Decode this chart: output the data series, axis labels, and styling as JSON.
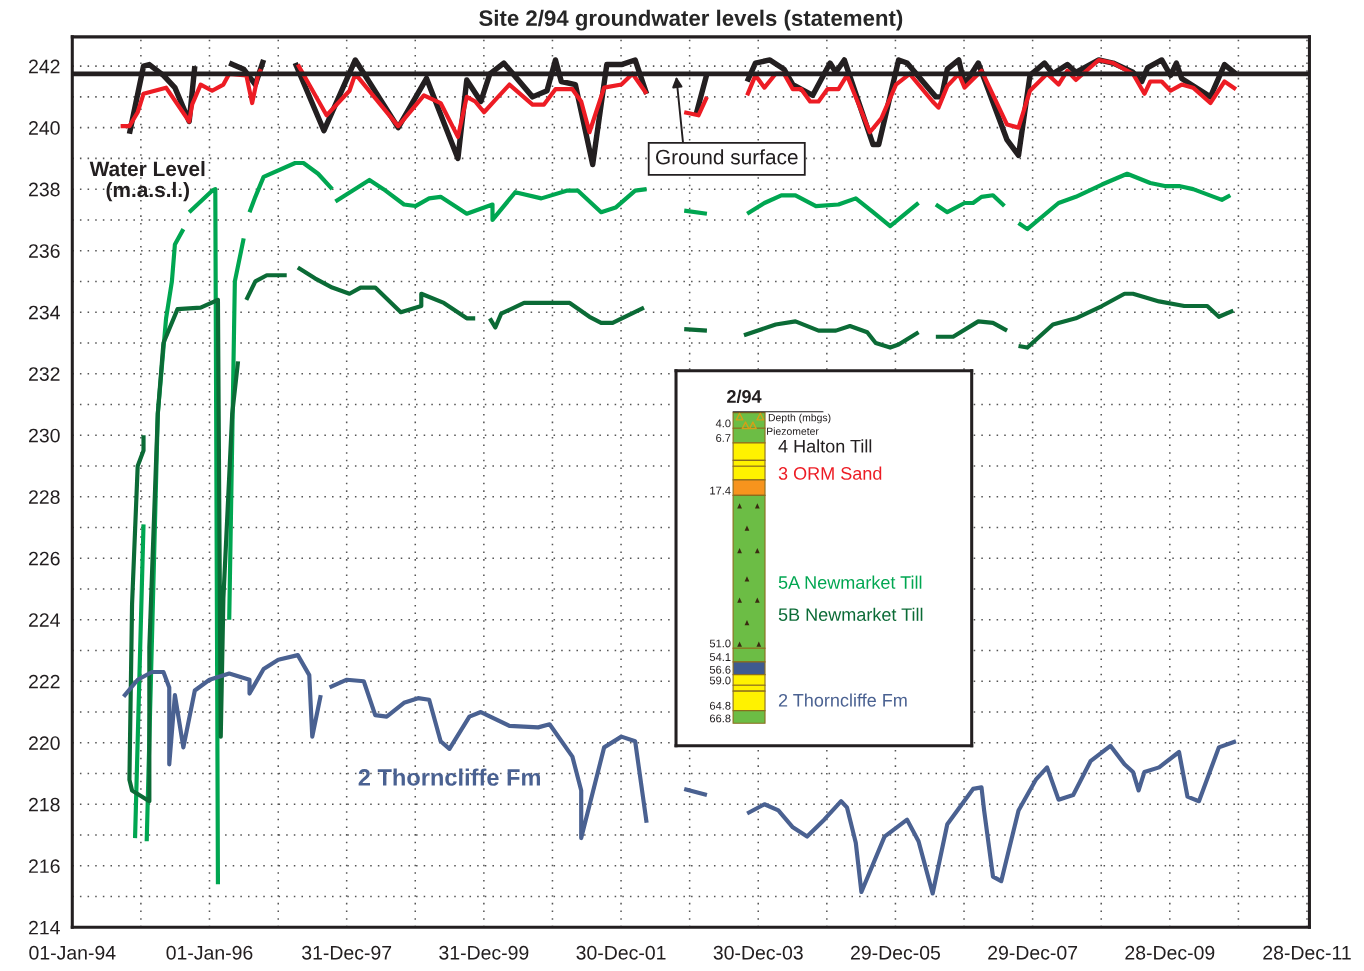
{
  "chart_data": {
    "type": "line",
    "title": "Site 2/94 groundwater levels (statement)",
    "ylabel": "Water Level\n(m.a.s.l.)",
    "legend_title": "2/94",
    "legend": "center",
    "grid": true,
    "xlim": [
      "1994-01-01",
      "2012-01-10"
    ],
    "xticks": [
      {
        "value": "1994-01-01",
        "label": "01-Jan-94"
      },
      {
        "value": "1995-01-01",
        "label": null
      },
      {
        "value": "1996-01-01",
        "label": "01-Jan-96"
      },
      {
        "value": "1997-01-01",
        "label": null
      },
      {
        "value": "1997-12-31",
        "label": "31-Dec-97"
      },
      {
        "value": "1998-12-31",
        "label": null
      },
      {
        "value": "1999-12-31",
        "label": "31-Dec-99"
      },
      {
        "value": "2000-12-30",
        "label": null
      },
      {
        "value": "2001-12-30",
        "label": "30-Dec-01"
      },
      {
        "value": "2002-12-30",
        "label": null
      },
      {
        "value": "2003-12-30",
        "label": "30-Dec-03"
      },
      {
        "value": "2004-12-29",
        "label": null
      },
      {
        "value": "2005-12-29",
        "label": "29-Dec-05"
      },
      {
        "value": "2006-12-29",
        "label": null
      },
      {
        "value": "2007-12-29",
        "label": "29-Dec-07"
      },
      {
        "value": "2008-12-28",
        "label": null
      },
      {
        "value": "2009-12-28",
        "label": "28-Dec-09"
      },
      {
        "value": "2010-12-28",
        "label": null
      },
      {
        "value": "2011-12-28",
        "label": "28-Dec-11"
      }
    ],
    "ylim": [
      214,
      242.95
    ],
    "yticks": [
      214,
      {
        "value": 215,
        "label": null
      },
      216,
      {
        "value": 217,
        "label": null
      },
      218,
      {
        "value": 219,
        "label": null
      },
      220,
      {
        "value": 221,
        "label": null
      },
      222,
      {
        "value": 223,
        "label": null
      },
      224,
      {
        "value": 225,
        "label": null
      },
      226,
      {
        "value": 227,
        "label": null
      },
      228,
      {
        "value": 229,
        "label": null
      },
      230,
      {
        "value": 231,
        "label": null
      },
      232,
      {
        "value": 233,
        "label": null
      },
      234,
      {
        "value": 235,
        "label": null
      },
      236,
      {
        "value": 237,
        "label": null
      },
      238,
      {
        "value": 239,
        "label": null
      },
      240,
      {
        "value": 241,
        "label": null
      },
      242
    ],
    "ref_lines": [
      {
        "axis": "y",
        "value": 241.75,
        "label": "Ground surface",
        "color": "#231f20"
      }
    ],
    "annotations": [
      "Depth (mbgs)",
      "Piezometer",
      "4.0",
      "6.7",
      "17.4",
      "51.0",
      "54.1",
      "56.6",
      "59.0",
      "64.8",
      "66.8",
      "2 Thorncliffe Fm"
    ],
    "series": [
      {
        "name": "4 Halton Till",
        "color": "#231f20",
        "x": [
          "1994-11-01",
          "1995-01-15",
          "1995-02-15",
          "1995-05-01",
          "1995-07-01",
          "1995-09-15",
          "1995-10-15",
          "1996-01-15",
          "1996-04-15",
          "1996-07-01",
          "1996-09-01",
          "1996-10-15",
          "1997-01-15",
          "1997-04-01",
          "1997-09-01",
          "1998-02-15",
          "1998-10-01",
          "1999-03-01",
          "1999-08-15",
          "1999-10-01",
          "1999-12-15",
          "2000-02-01",
          "2000-04-15",
          "2000-09-15",
          "2000-12-01",
          "2001-01-15",
          "2001-02-15",
          "2001-05-01",
          "2001-08-01",
          "2001-10-15",
          "2002-01-01",
          "2002-03-15",
          "2002-05-15",
          "2002-10-01",
          "2003-02-01",
          "2003-04-01",
          "2003-07-15",
          "2003-11-01",
          "2003-12-15",
          "2004-03-01",
          "2004-05-15",
          "2004-07-01",
          "2004-10-15",
          "2005-01-15",
          "2005-02-15",
          "2005-04-01",
          "2005-09-01",
          "2005-10-01",
          "2006-01-15",
          "2006-03-01",
          "2006-08-01",
          "2006-09-01",
          "2006-10-01",
          "2006-12-01",
          "2007-01-01",
          "2007-03-15",
          "2007-08-15",
          "2007-10-15",
          "2007-12-15",
          "2008-03-01",
          "2008-04-15",
          "2008-07-01",
          "2008-08-15",
          "2008-12-15",
          "2009-03-01",
          "2009-06-15",
          "2009-08-01",
          "2009-09-01",
          "2009-11-15",
          "2010-01-01",
          "2010-02-01",
          "2010-03-01",
          "2010-08-01",
          "2010-10-15",
          "2010-12-15"
        ],
        "values": [
          239.8,
          242.0,
          242.05,
          241.7,
          241.3,
          240.2,
          242.0,
          null,
          242.1,
          241.9,
          241.4,
          242.2,
          null,
          242.1,
          239.9,
          242.2,
          240.0,
          241.6,
          239.0,
          241.55,
          240.85,
          241.75,
          242.1,
          241.0,
          241.2,
          242.2,
          241.5,
          241.4,
          238.8,
          242.05,
          242.05,
          242.2,
          241.1,
          null,
          240.4,
          241.75,
          null,
          241.5,
          242.1,
          242.2,
          241.9,
          241.4,
          241.05,
          242.1,
          241.8,
          242.2,
          239.45,
          239.45,
          242.2,
          242.1,
          241.0,
          241.0,
          241.9,
          242.2,
          241.4,
          242.1,
          239.6,
          239.1,
          241.7,
          242.1,
          241.75,
          242.05,
          241.8,
          242.2,
          242.1,
          241.8,
          241.5,
          241.95,
          242.2,
          241.7,
          242.1,
          241.6,
          241.0,
          242.05,
          241.75
        ]
      },
      {
        "name": "3 ORM Sand",
        "color": "#ed1c24",
        "x": [
          "1994-09-15",
          "1994-11-01",
          "1994-12-15",
          "1995-01-15",
          "1995-05-15",
          "1995-09-15",
          "1995-10-01",
          "1995-11-15",
          "1996-01-15",
          "1996-03-15",
          "1996-04-15",
          "1996-07-15",
          "1996-08-15",
          "1996-09-15",
          "1996-10-01",
          "1997-01-15",
          "1997-04-15",
          "1997-09-15",
          "1998-01-15",
          "1998-02-15",
          "1998-10-01",
          "1999-02-15",
          "1999-05-15",
          "1999-08-15",
          "1999-10-01",
          "1999-11-15",
          "2000-01-01",
          "2000-03-01",
          "2000-05-15",
          "2000-09-15",
          "2000-11-15",
          "2001-01-15",
          "2001-04-15",
          "2001-06-01",
          "2001-07-15",
          "2001-10-01",
          "2002-01-01",
          "2002-03-01",
          "2002-05-15",
          "2002-09-01",
          "2002-12-01",
          "2003-02-15",
          "2003-04-01",
          "2003-07-15",
          "2003-11-01",
          "2003-12-15",
          "2004-02-01",
          "2004-04-01",
          "2004-05-15",
          "2004-07-01",
          "2004-08-15",
          "2004-10-01",
          "2004-11-15",
          "2005-01-01",
          "2005-03-01",
          "2005-04-15",
          "2005-08-15",
          "2005-10-15",
          "2006-01-01",
          "2006-03-15",
          "2006-07-15",
          "2006-08-15",
          "2006-10-01",
          "2006-12-01",
          "2007-01-01",
          "2007-04-01",
          "2007-08-15",
          "2007-10-15",
          "2007-12-15",
          "2008-03-15",
          "2008-05-15",
          "2008-07-01",
          "2008-08-15",
          "2008-12-15",
          "2009-03-01",
          "2009-06-15",
          "2009-08-15",
          "2009-09-15",
          "2009-11-15",
          "2010-01-01",
          "2010-03-01",
          "2010-05-01",
          "2010-08-01",
          "2010-10-15",
          "2010-12-15"
        ],
        "values": [
          240.05,
          240.05,
          240.5,
          241.1,
          241.3,
          240.2,
          240.75,
          241.4,
          241.2,
          241.4,
          241.75,
          241.7,
          240.8,
          241.7,
          241.9,
          null,
          242.05,
          240.4,
          241.2,
          241.75,
          240.05,
          241.05,
          240.8,
          239.7,
          241.0,
          240.85,
          240.5,
          240.9,
          241.4,
          240.75,
          240.75,
          241.25,
          241.25,
          240.85,
          239.85,
          241.3,
          241.4,
          241.75,
          241.1,
          null,
          240.5,
          240.4,
          241.0,
          null,
          241.05,
          241.7,
          241.3,
          241.75,
          241.75,
          241.25,
          241.25,
          240.85,
          240.85,
          241.25,
          241.25,
          241.7,
          239.85,
          240.3,
          241.4,
          241.75,
          240.85,
          240.65,
          241.35,
          241.75,
          241.3,
          241.85,
          240.1,
          240.0,
          241.2,
          241.75,
          241.4,
          241.85,
          241.55,
          242.2,
          242.1,
          241.75,
          241.1,
          241.5,
          241.5,
          241.2,
          241.4,
          241.3,
          240.8,
          241.5,
          241.25
        ]
      },
      {
        "name": "5A Newmarket Till",
        "color": "#00a651",
        "x": [
          "1994-12-01",
          "1995-01-15",
          "1995-01-22",
          "1995-02-01",
          "1995-04-01",
          "1995-05-15",
          "1995-06-15",
          "1995-07-01",
          "1995-08-15",
          "1995-09-01",
          "1995-09-15",
          "1996-01-15",
          "1996-02-01",
          "1996-02-15",
          "1996-03-15",
          "1996-04-15",
          "1996-05-15",
          "1996-07-01",
          "1996-07-15",
          "1996-08-01",
          "1996-09-01",
          "1996-10-15",
          "1997-04-01",
          "1997-05-15",
          "1997-08-01",
          "1997-10-15",
          "1997-10-22",
          "1997-11-01",
          "1998-05-01",
          "1998-07-15",
          "1998-11-01",
          "1999-01-01",
          "1999-03-15",
          "1999-05-15",
          "1999-10-01",
          "2000-02-15",
          "2000-02-15",
          "2000-06-15",
          "2000-11-01",
          "2001-03-15",
          "2001-05-15",
          "2001-09-15",
          "2001-12-01",
          "2002-03-15",
          "2002-05-15",
          "2002-09-01",
          "2002-12-01",
          "2003-04-01",
          "2003-07-15",
          "2003-11-01",
          "2004-02-01",
          "2004-05-01",
          "2004-07-15",
          "2004-11-01",
          "2005-03-01",
          "2005-06-01",
          "2005-09-01",
          "2005-12-01",
          "2006-05-01",
          "2006-06-15",
          "2006-08-01",
          "2006-10-01",
          "2007-01-01",
          "2007-02-15",
          "2007-04-01",
          "2007-06-01",
          "2007-08-01",
          "2007-09-15",
          "2007-10-15",
          "2007-12-01",
          "2008-05-15",
          "2008-08-15",
          "2009-01-01",
          "2009-05-15",
          "2009-09-15",
          "2009-12-01",
          "2010-02-15",
          "2010-05-01",
          "2010-10-01",
          "2010-11-15"
        ],
        "values": [
          216.9,
          227.1,
          null,
          216.8,
          230.7,
          233.8,
          235.0,
          236.2,
          236.7,
          null,
          237.25,
          237.95,
          238.0,
          215.4,
          null,
          224.0,
          235.0,
          236.4,
          null,
          237.25,
          237.75,
          238.4,
          238.85,
          238.85,
          238.5,
          238.0,
          null,
          237.6,
          238.3,
          238.0,
          237.5,
          237.45,
          237.7,
          237.75,
          237.2,
          237.5,
          237.0,
          237.9,
          237.7,
          237.95,
          237.95,
          237.25,
          237.4,
          237.95,
          238.0,
          null,
          237.3,
          237.2,
          null,
          237.2,
          237.55,
          237.8,
          237.8,
          237.45,
          237.5,
          237.7,
          237.25,
          236.8,
          237.55,
          null,
          237.5,
          237.25,
          237.55,
          237.55,
          237.75,
          237.8,
          237.45,
          null,
          236.9,
          236.7,
          237.55,
          237.75,
          238.15,
          238.5,
          238.2,
          238.1,
          238.1,
          238.0,
          237.65,
          237.8
        ]
      },
      {
        "name": "5B Newmarket Till",
        "color": "#0b6b36",
        "x": [
          "1995-01-15",
          "1995-01-15",
          "1994-12-15",
          "1994-11-15",
          "1994-11-01",
          "1994-11-15",
          "1995-02-15",
          "1995-02-15",
          "1995-04-01",
          "1995-05-01",
          "1995-07-15",
          "1995-11-15",
          "1996-02-15",
          "1996-03-01",
          "1996-03-15",
          "1996-05-01",
          "1996-06-01",
          "1996-07-01",
          "1996-07-15",
          "1996-09-01",
          "1996-11-01",
          "1997-02-15",
          "1997-03-15",
          "1997-04-15",
          "1997-07-15",
          "1997-10-15",
          "1998-01-15",
          "1998-03-15",
          "1998-06-01",
          "1998-10-15",
          "1999-02-01",
          "1999-02-01",
          "1999-06-01",
          "1999-10-01",
          "1999-11-15",
          "2000-01-01",
          "2000-02-01",
          "2000-03-01",
          "2000-04-01",
          "2000-08-01",
          "2001-04-01",
          "2001-07-15",
          "2001-09-15",
          "2001-11-15",
          "2002-05-01",
          "2002-09-01",
          "2002-12-01",
          "2003-04-01",
          "2003-07-15",
          "2003-10-15",
          "2004-04-01",
          "2004-07-15",
          "2004-11-15",
          "2005-02-15",
          "2005-05-01",
          "2005-08-01",
          "2005-09-15",
          "2005-12-01",
          "2006-01-15",
          "2006-05-01",
          "2006-06-15",
          "2006-08-01",
          "2006-11-01",
          "2007-03-15",
          "2007-06-01",
          "2007-08-15",
          "2007-09-15",
          "2007-10-15",
          "2007-12-01",
          "2008-04-15",
          "2008-08-15",
          "2009-01-01",
          "2009-05-01",
          "2009-06-15",
          "2009-11-01",
          "2010-03-15",
          "2010-07-15",
          "2010-09-15",
          "2010-12-01"
        ],
        "values": [
          230.0,
          229.5,
          229.0,
          224.5,
          218.8,
          218.45,
          218.1,
          223.1,
          230.7,
          233.0,
          234.1,
          234.15,
          234.4,
          220.2,
          224.7,
          230.7,
          232.4,
          null,
          234.4,
          235.0,
          235.2,
          235.2,
          null,
          235.45,
          235.1,
          234.8,
          234.6,
          234.8,
          234.8,
          234.0,
          234.2,
          234.6,
          234.3,
          233.8,
          233.8,
          null,
          233.8,
          233.5,
          233.95,
          234.3,
          234.3,
          233.85,
          233.65,
          233.65,
          234.15,
          null,
          233.45,
          233.4,
          null,
          233.25,
          233.6,
          233.7,
          233.4,
          233.4,
          233.55,
          233.35,
          233.0,
          232.85,
          232.95,
          233.35,
          null,
          233.2,
          233.2,
          233.7,
          233.65,
          233.4,
          null,
          232.9,
          232.85,
          233.6,
          233.8,
          234.2,
          234.6,
          234.6,
          234.35,
          234.2,
          234.2,
          233.85,
          234.05
        ]
      },
      {
        "name": "2 Thorncliffe Fm",
        "color": "#4a6191",
        "x": [
          "1994-10-01",
          "1994-12-15",
          "1995-03-01",
          "1995-05-01",
          "1995-06-01",
          "1995-06-01",
          "1995-07-01",
          "1995-08-15",
          "1995-10-15",
          "1996-01-01",
          "1996-04-15",
          "1996-08-01",
          "1996-08-01",
          "1996-10-15",
          "1997-01-01",
          "1997-04-15",
          "1997-06-15",
          "1997-07-01",
          "1997-08-15",
          "1997-09-01",
          "1997-10-01",
          "1998-01-01",
          "1998-04-01",
          "1998-06-01",
          "1998-08-01",
          "1998-11-01",
          "1999-01-15",
          "1999-03-15",
          "1999-05-15",
          "1999-07-01",
          "1999-10-15",
          "1999-12-15",
          "2000-05-15",
          "2000-10-15",
          "2000-12-15",
          "2001-04-15",
          "2001-06-01",
          "2001-06-01",
          "2001-10-01",
          "2002-01-01",
          "2002-03-15",
          "2002-05-15",
          "2002-09-01",
          "2002-12-01",
          "2003-04-01",
          "2003-07-15",
          "2003-11-01",
          "2004-02-01",
          "2004-04-15",
          "2004-07-01",
          "2004-09-15",
          "2004-12-15",
          "2005-03-15",
          "2005-04-15",
          "2005-06-01",
          "2005-07-01",
          "2005-11-01",
          "2006-03-01",
          "2006-05-01",
          "2006-07-15",
          "2006-10-01",
          "2007-02-15",
          "2007-04-01",
          "2007-04-15",
          "2007-06-01",
          "2007-07-15",
          "2007-10-15",
          "2008-01-15",
          "2008-03-15",
          "2008-05-15",
          "2008-08-01",
          "2008-11-01",
          "2009-02-15",
          "2009-05-01",
          "2009-06-15",
          "2009-07-15",
          "2009-08-15",
          "2009-11-01",
          "2010-02-15",
          "2010-04-01",
          "2010-06-01",
          "2010-09-15",
          "2010-12-15"
        ],
        "values": [
          221.5,
          222.05,
          222.3,
          222.3,
          221.8,
          219.3,
          221.55,
          219.85,
          221.7,
          222.05,
          222.25,
          222.05,
          221.6,
          222.4,
          222.7,
          222.85,
          222.2,
          220.2,
          221.55,
          null,
          221.8,
          222.05,
          222.0,
          220.9,
          220.85,
          221.3,
          221.45,
          221.4,
          220.05,
          219.8,
          220.85,
          221.0,
          220.55,
          220.5,
          220.6,
          219.55,
          218.45,
          216.9,
          219.85,
          220.2,
          220.05,
          217.4,
          null,
          218.5,
          218.3,
          null,
          217.7,
          218.0,
          217.8,
          217.25,
          216.95,
          217.5,
          218.1,
          217.9,
          216.75,
          215.15,
          216.95,
          217.5,
          216.8,
          215.1,
          217.35,
          218.5,
          218.55,
          217.8,
          215.65,
          215.5,
          217.8,
          218.8,
          219.2,
          218.15,
          218.3,
          219.4,
          219.9,
          219.3,
          219.05,
          218.45,
          219.05,
          219.2,
          219.7,
          218.25,
          218.1,
          219.85,
          220.05
        ]
      }
    ]
  }
}
